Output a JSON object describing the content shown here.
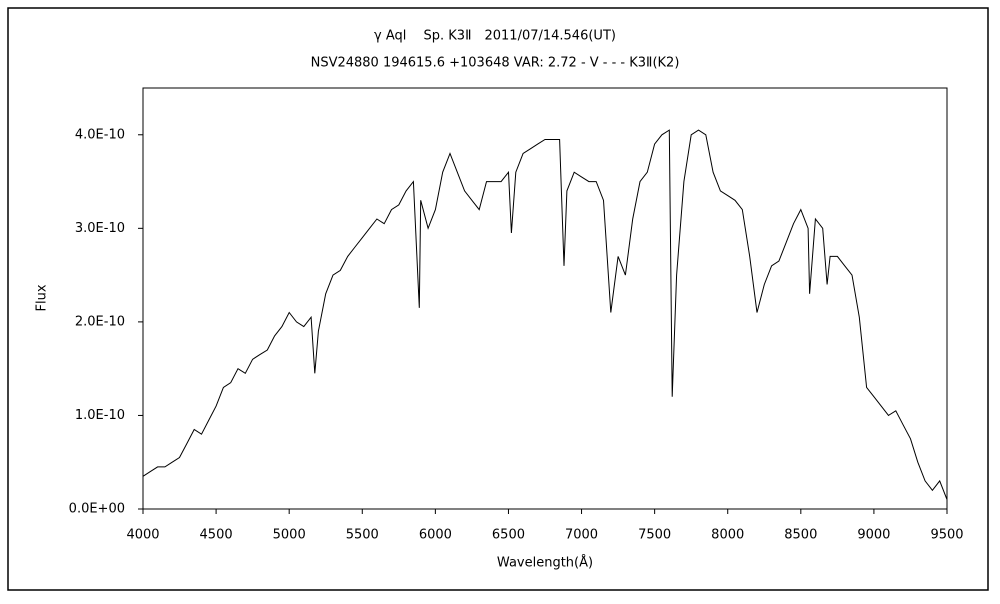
{
  "chart_data": {
    "type": "line",
    "title": "γ  Aql　 Sp. K3Ⅱ　2011/07/14.546(UT)",
    "subtitle": "NSV24880 194615.6 +103648 VAR: 2.72 - V - - - K3Ⅱ(K2)",
    "x_label": "Wavelength(Å)",
    "y_label": "Flux",
    "xlim": [
      4000,
      9500
    ],
    "xticks": [
      4000,
      4500,
      5000,
      5500,
      6000,
      6500,
      7000,
      7500,
      8000,
      8500,
      9000,
      9500
    ],
    "ylim": [
      0,
      4.5e-10
    ],
    "yticks": [
      {
        "value": 0,
        "label": "0.0E+00"
      },
      {
        "value": 1e-10,
        "label": "1.0E-10"
      },
      {
        "value": 2e-10,
        "label": "2.0E-10"
      },
      {
        "value": 3e-10,
        "label": "3.0E-10"
      },
      {
        "value": 4e-10,
        "label": "4.0E-10"
      }
    ],
    "series": [
      {
        "color": "#000000",
        "x": [
          4000,
          4050,
          4100,
          4150,
          4200,
          4250,
          4300,
          4350,
          4400,
          4450,
          4500,
          4550,
          4600,
          4650,
          4700,
          4750,
          4800,
          4850,
          4900,
          4950,
          5000,
          5050,
          5100,
          5150,
          5175,
          5200,
          5250,
          5300,
          5350,
          5400,
          5450,
          5500,
          5550,
          5600,
          5650,
          5700,
          5750,
          5800,
          5850,
          5890,
          5900,
          5950,
          6000,
          6050,
          6100,
          6150,
          6200,
          6250,
          6300,
          6350,
          6400,
          6450,
          6500,
          6520,
          6550,
          6600,
          6650,
          6700,
          6750,
          6800,
          6850,
          6880,
          6900,
          6950,
          7000,
          7050,
          7100,
          7150,
          7200,
          7250,
          7300,
          7350,
          7400,
          7450,
          7500,
          7550,
          7600,
          7620,
          7650,
          7700,
          7750,
          7800,
          7850,
          7900,
          7950,
          8000,
          8050,
          8100,
          8150,
          8200,
          8250,
          8300,
          8350,
          8400,
          8450,
          8500,
          8550,
          8560,
          8600,
          8650,
          8680,
          8700,
          8750,
          8800,
          8850,
          8900,
          8950,
          9000,
          9050,
          9100,
          9150,
          9200,
          9250,
          9300,
          9350,
          9400,
          9450,
          9500
        ],
        "values": [
          3.5e-11,
          4e-11,
          4.5e-11,
          4.5e-11,
          5e-11,
          5.5e-11,
          7e-11,
          8.5e-11,
          8e-11,
          9.5e-11,
          1.1e-10,
          1.3e-10,
          1.35e-10,
          1.5e-10,
          1.45e-10,
          1.6e-10,
          1.65e-10,
          1.7e-10,
          1.85e-10,
          1.95e-10,
          2.1e-10,
          2e-10,
          1.95e-10,
          2.05e-10,
          1.45e-10,
          1.9e-10,
          2.3e-10,
          2.5e-10,
          2.55e-10,
          2.7e-10,
          2.8e-10,
          2.9e-10,
          3e-10,
          3.1e-10,
          3.05e-10,
          3.2e-10,
          3.25e-10,
          3.4e-10,
          3.5e-10,
          2.15e-10,
          3.3e-10,
          3e-10,
          3.2e-10,
          3.6e-10,
          3.8e-10,
          3.6e-10,
          3.4e-10,
          3.3e-10,
          3.2e-10,
          3.5e-10,
          3.5e-10,
          3.5e-10,
          3.6e-10,
          2.95e-10,
          3.6e-10,
          3.8e-10,
          3.85e-10,
          3.9e-10,
          3.95e-10,
          3.95e-10,
          3.95e-10,
          2.6e-10,
          3.4e-10,
          3.6e-10,
          3.55e-10,
          3.5e-10,
          3.5e-10,
          3.3e-10,
          2.1e-10,
          2.7e-10,
          2.5e-10,
          3.1e-10,
          3.5e-10,
          3.6e-10,
          3.9e-10,
          4e-10,
          4.05e-10,
          1.2e-10,
          2.5e-10,
          3.5e-10,
          4e-10,
          4.05e-10,
          4e-10,
          3.6e-10,
          3.4e-10,
          3.35e-10,
          3.3e-10,
          3.2e-10,
          2.7e-10,
          2.1e-10,
          2.4e-10,
          2.6e-10,
          2.65e-10,
          2.85e-10,
          3.05e-10,
          3.2e-10,
          3e-10,
          2.3e-10,
          3.1e-10,
          3e-10,
          2.4e-10,
          2.7e-10,
          2.7e-10,
          2.6e-10,
          2.5e-10,
          2.05e-10,
          1.3e-10,
          1.2e-10,
          1.1e-10,
          1e-10,
          1.05e-10,
          9e-11,
          7.5e-11,
          5e-11,
          3e-11,
          2e-11,
          3e-11,
          1e-11
        ]
      }
    ]
  }
}
